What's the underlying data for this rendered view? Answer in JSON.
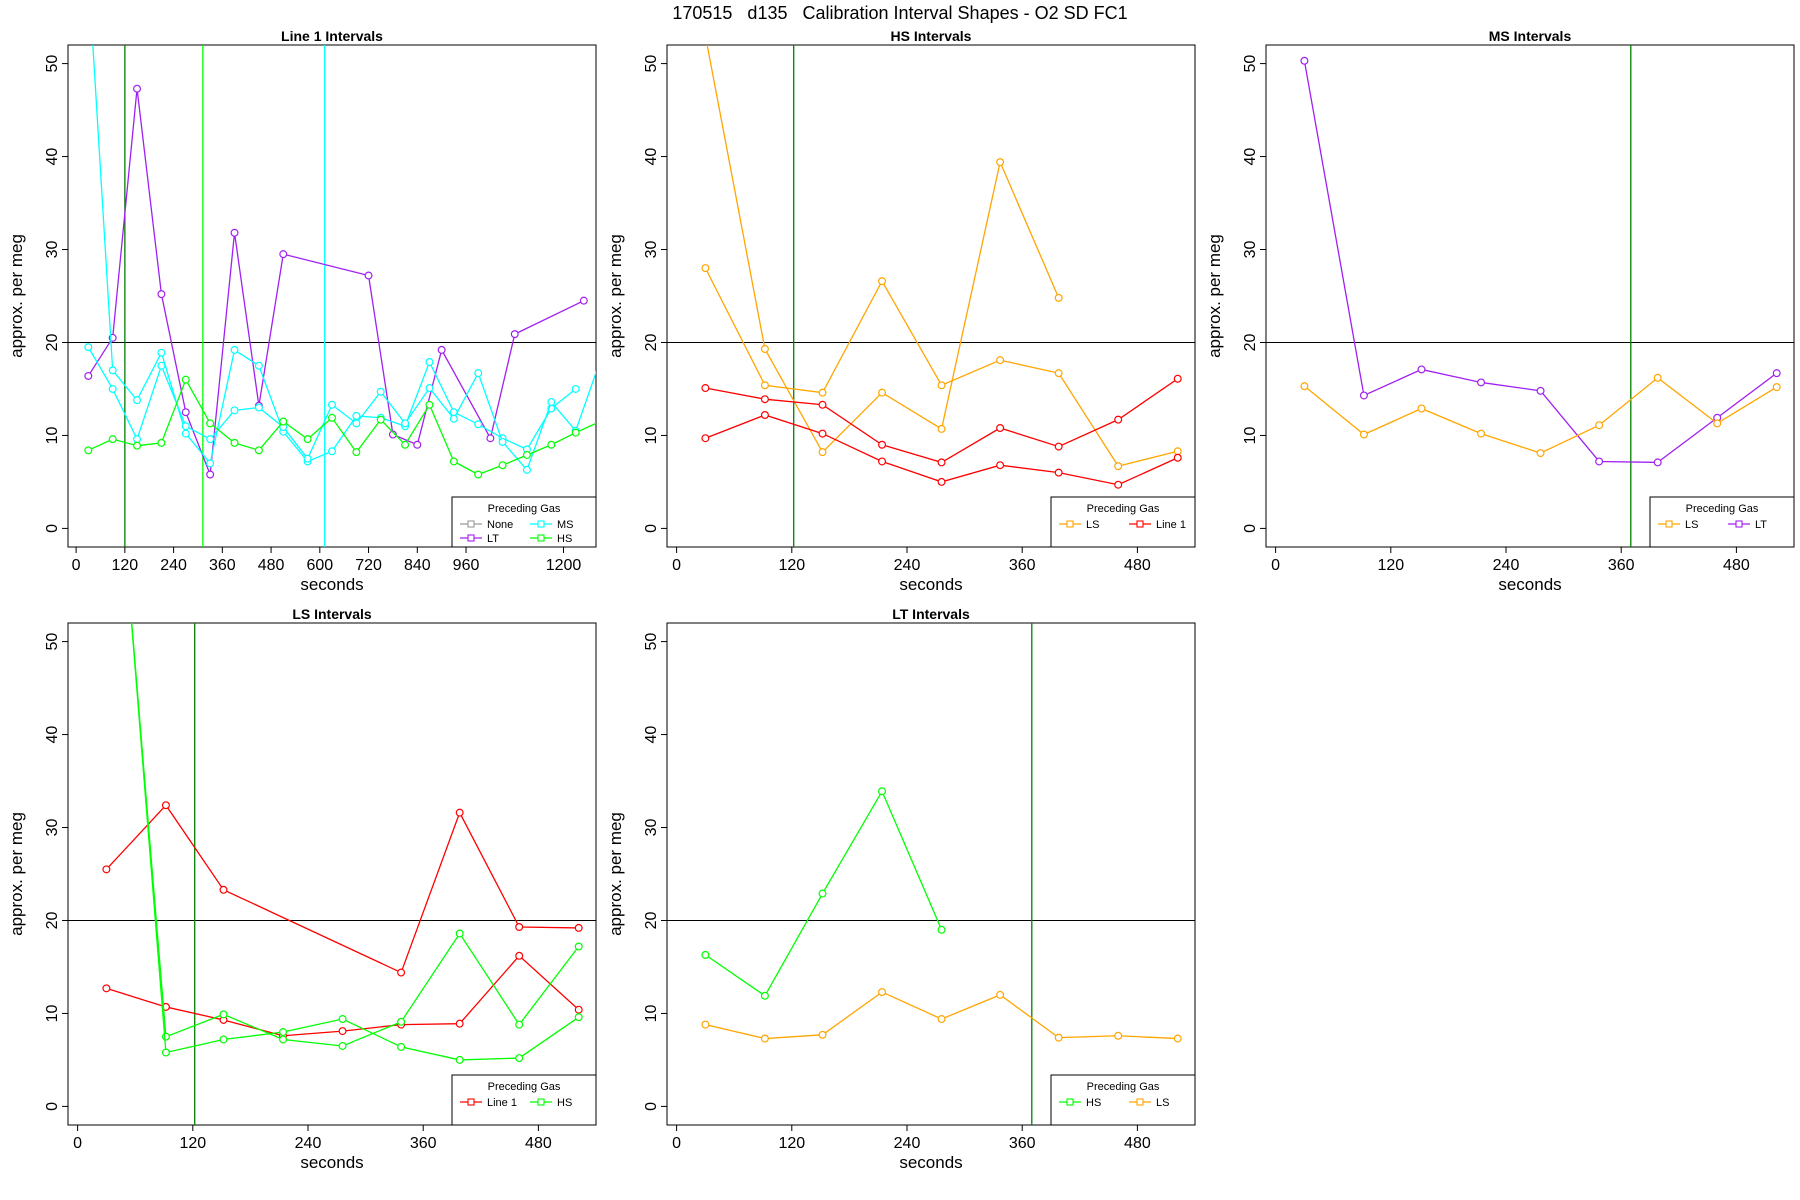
{
  "figure": {
    "title": "170515   d135   Calibration Interval Shapes - O2 SD FC1"
  },
  "chart_data": [
    {
      "type": "line",
      "title": "Line 1 Intervals",
      "xlabel": "seconds",
      "ylabel": "approx. per meg",
      "xlim": [
        -20,
        1280
      ],
      "ylim": [
        -2,
        52
      ],
      "xticks": [
        0,
        120,
        240,
        360,
        480,
        600,
        720,
        840,
        960,
        1200
      ],
      "yticks": [
        0,
        10,
        20,
        30,
        40,
        50
      ],
      "grid": false,
      "hlines": [
        {
          "y": 20,
          "color": "#000000"
        }
      ],
      "vlines": [
        {
          "x": 120,
          "color": "#008000"
        },
        {
          "x": 312,
          "color": "#00ff00"
        },
        {
          "x": 612,
          "color": "#00ffff"
        }
      ],
      "legend": {
        "title": "Preceding Gas",
        "position": "bottom-right",
        "columns": 2,
        "entries": [
          {
            "label": "None",
            "color": "#999999"
          },
          {
            "label": "MS",
            "color": "#00ffff"
          },
          {
            "label": "LT",
            "color": "#a020f0"
          },
          {
            "label": "HS",
            "color": "#00ff00"
          }
        ]
      },
      "series": [
        {
          "color": "#a020f0",
          "x": [
            30,
            90,
            150,
            210,
            270,
            330,
            390,
            450,
            510,
            720,
            780,
            840,
            900,
            1020,
            1080,
            1250
          ],
          "y": [
            16.4,
            20.5,
            47.3,
            25.2,
            12.5,
            5.8,
            31.8,
            13.2,
            29.5,
            27.2,
            10.1,
            9.0,
            19.2,
            9.7,
            20.9,
            24.5
          ]
        },
        {
          "color": "#00ffff",
          "x": [
            30,
            90,
            150,
            210,
            270,
            330,
            390,
            450,
            510,
            570,
            630,
            690,
            750,
            810,
            870,
            930,
            990,
            1050,
            1110,
            1170,
            1230
          ],
          "y": [
            60,
            17.0,
            13.8,
            18.9,
            10.2,
            7.0,
            19.2,
            17.5,
            10.4,
            7.2,
            8.3,
            12.1,
            11.9,
            11.0,
            17.9,
            12.5,
            11.2,
            9.7,
            8.5,
            12.9,
            15.0
          ]
        },
        {
          "color": "#00ffff",
          "x": [
            30,
            90,
            150,
            210,
            270,
            330,
            390,
            450,
            510,
            570,
            630,
            690,
            750,
            810,
            870,
            930,
            990,
            1050,
            1110,
            1170,
            1230,
            1290
          ],
          "y": [
            19.5,
            15.0,
            9.6,
            17.5,
            11.0,
            9.6,
            12.7,
            13.0,
            10.9,
            7.5,
            13.3,
            11.3,
            14.7,
            11.3,
            15.1,
            11.8,
            16.7,
            9.3,
            6.3,
            13.6,
            10.5,
            18.0
          ]
        },
        {
          "color": "#00ff00",
          "x": [
            30,
            90,
            150,
            210,
            270,
            330,
            390,
            450,
            510,
            570,
            630,
            690,
            750,
            810,
            870,
            930,
            990,
            1050,
            1110,
            1170,
            1230,
            1290
          ],
          "y": [
            8.4,
            9.6,
            8.9,
            9.2,
            16.0,
            11.3,
            9.2,
            8.4,
            11.5,
            9.6,
            11.9,
            8.2,
            11.7,
            9.0,
            13.3,
            7.2,
            5.8,
            6.8,
            7.9,
            9.0,
            10.3,
            11.5
          ]
        }
      ]
    },
    {
      "type": "line",
      "title": "HS Intervals",
      "xlabel": "seconds",
      "ylabel": "approx. per meg",
      "xlim": [
        -10,
        540
      ],
      "ylim": [
        -2,
        52
      ],
      "xticks": [
        0,
        120,
        240,
        360,
        480
      ],
      "yticks": [
        0,
        10,
        20,
        30,
        40,
        50
      ],
      "grid": false,
      "hlines": [
        {
          "y": 20,
          "color": "#000000"
        }
      ],
      "vlines": [
        {
          "x": 122,
          "color": "#008000"
        }
      ],
      "legend": {
        "title": "Preceding Gas",
        "position": "bottom-right",
        "columns": 2,
        "entries": [
          {
            "label": "LS",
            "color": "#ffa500"
          },
          {
            "label": "Line 1",
            "color": "#ff0000"
          }
        ]
      },
      "series": [
        {
          "color": "#ffa500",
          "x": [
            30,
            92,
            152,
            214,
            276,
            337,
            398
          ],
          "y": [
            53,
            19.3,
            8.2,
            14.6,
            10.7,
            39.4,
            24.8
          ]
        },
        {
          "color": "#ffa500",
          "x": [
            30,
            92,
            152,
            214,
            276,
            337,
            398,
            460,
            522
          ],
          "y": [
            28.0,
            15.4,
            14.6,
            26.6,
            15.4,
            18.1,
            16.7,
            6.7,
            8.3
          ]
        },
        {
          "color": "#ff0000",
          "x": [
            30,
            92,
            152,
            214,
            276,
            337,
            398,
            460,
            522
          ],
          "y": [
            15.1,
            13.9,
            13.3,
            9.0,
            7.1,
            10.8,
            8.8,
            11.7,
            16.1
          ]
        },
        {
          "color": "#ff0000",
          "x": [
            30,
            92,
            152,
            214,
            276,
            337,
            398,
            460,
            522
          ],
          "y": [
            9.7,
            12.2,
            10.2,
            7.2,
            5.0,
            6.8,
            6.0,
            4.7,
            7.6
          ]
        }
      ]
    },
    {
      "type": "line",
      "title": "MS Intervals",
      "xlabel": "seconds",
      "ylabel": "approx. per meg",
      "xlim": [
        -10,
        540
      ],
      "ylim": [
        -2,
        52
      ],
      "xticks": [
        0,
        120,
        240,
        360,
        480
      ],
      "yticks": [
        0,
        10,
        20,
        30,
        40,
        50
      ],
      "grid": false,
      "hlines": [
        {
          "y": 20,
          "color": "#000000"
        }
      ],
      "vlines": [
        {
          "x": 370,
          "color": "#008000"
        }
      ],
      "legend": {
        "title": "Preceding Gas",
        "position": "bottom-right",
        "columns": 2,
        "entries": [
          {
            "label": "LS",
            "color": "#ffa500"
          },
          {
            "label": "LT",
            "color": "#a020f0"
          }
        ]
      },
      "series": [
        {
          "color": "#a020f0",
          "x": [
            30,
            92,
            152,
            214,
            276,
            337,
            398,
            460,
            522
          ],
          "y": [
            50.3,
            14.3,
            17.1,
            15.7,
            14.8,
            7.2,
            7.1,
            11.9,
            16.7
          ]
        },
        {
          "color": "#ffa500",
          "x": [
            30,
            92,
            152,
            214,
            276,
            337,
            398,
            460,
            522
          ],
          "y": [
            15.3,
            10.1,
            12.9,
            10.2,
            8.1,
            11.1,
            16.2,
            11.3,
            15.2
          ]
        }
      ]
    },
    {
      "type": "line",
      "title": "LS Intervals",
      "xlabel": "seconds",
      "ylabel": "approx. per meg",
      "xlim": [
        -10,
        540
      ],
      "ylim": [
        -2,
        52
      ],
      "xticks": [
        0,
        120,
        240,
        360,
        480
      ],
      "yticks": [
        0,
        10,
        20,
        30,
        40,
        50
      ],
      "grid": false,
      "hlines": [
        {
          "y": 20,
          "color": "#000000"
        }
      ],
      "vlines": [
        {
          "x": 122,
          "color": "#008000"
        }
      ],
      "legend": {
        "title": "Preceding Gas",
        "position": "bottom-right",
        "columns": 2,
        "entries": [
          {
            "label": "Line 1",
            "color": "#ff0000"
          },
          {
            "label": "HS",
            "color": "#00ff00"
          }
        ]
      },
      "series": [
        {
          "color": "#ff0000",
          "x": [
            30,
            92,
            152,
            337,
            398,
            460,
            522
          ],
          "y": [
            25.5,
            32.4,
            23.3,
            14.4,
            31.6,
            19.3,
            19.2
          ]
        },
        {
          "color": "#ff0000",
          "x": [
            30,
            92,
            152,
            214,
            276,
            337,
            398,
            460,
            522
          ],
          "y": [
            12.7,
            10.7,
            9.3,
            7.6,
            8.1,
            8.8,
            8.9,
            16.2,
            10.4
          ]
        },
        {
          "color": "#00ff00",
          "x": [
            50,
            92,
            152,
            214,
            276,
            337,
            398,
            460,
            522
          ],
          "y": [
            60,
            7.5,
            9.9,
            7.2,
            6.5,
            9.1,
            18.6,
            8.8,
            17.2
          ]
        },
        {
          "color": "#00ff00",
          "x": [
            50,
            92,
            152,
            214,
            276,
            337,
            398,
            460,
            522
          ],
          "y": [
            60,
            5.8,
            7.2,
            8.0,
            9.4,
            6.4,
            5.0,
            5.2,
            9.6
          ]
        }
      ]
    },
    {
      "type": "line",
      "title": "LT Intervals",
      "xlabel": "seconds",
      "ylabel": "approx. per meg",
      "xlim": [
        -10,
        540
      ],
      "ylim": [
        -2,
        52
      ],
      "xticks": [
        0,
        120,
        240,
        360,
        480
      ],
      "yticks": [
        0,
        10,
        20,
        30,
        40,
        50
      ],
      "grid": false,
      "hlines": [
        {
          "y": 20,
          "color": "#000000"
        }
      ],
      "vlines": [
        {
          "x": 370,
          "color": "#008000"
        }
      ],
      "legend": {
        "title": "Preceding Gas",
        "position": "bottom-right",
        "columns": 2,
        "entries": [
          {
            "label": "HS",
            "color": "#00ff00"
          },
          {
            "label": "LS",
            "color": "#ffa500"
          }
        ]
      },
      "series": [
        {
          "color": "#00ff00",
          "x": [
            30,
            92,
            152,
            214,
            276
          ],
          "y": [
            16.3,
            11.9,
            22.9,
            33.9,
            19.0
          ]
        },
        {
          "color": "#ffa500",
          "x": [
            30,
            92,
            152,
            214,
            276,
            337,
            398,
            460,
            522
          ],
          "y": [
            8.8,
            7.3,
            7.7,
            12.3,
            9.4,
            12.0,
            7.4,
            7.6,
            7.3
          ]
        }
      ]
    }
  ]
}
